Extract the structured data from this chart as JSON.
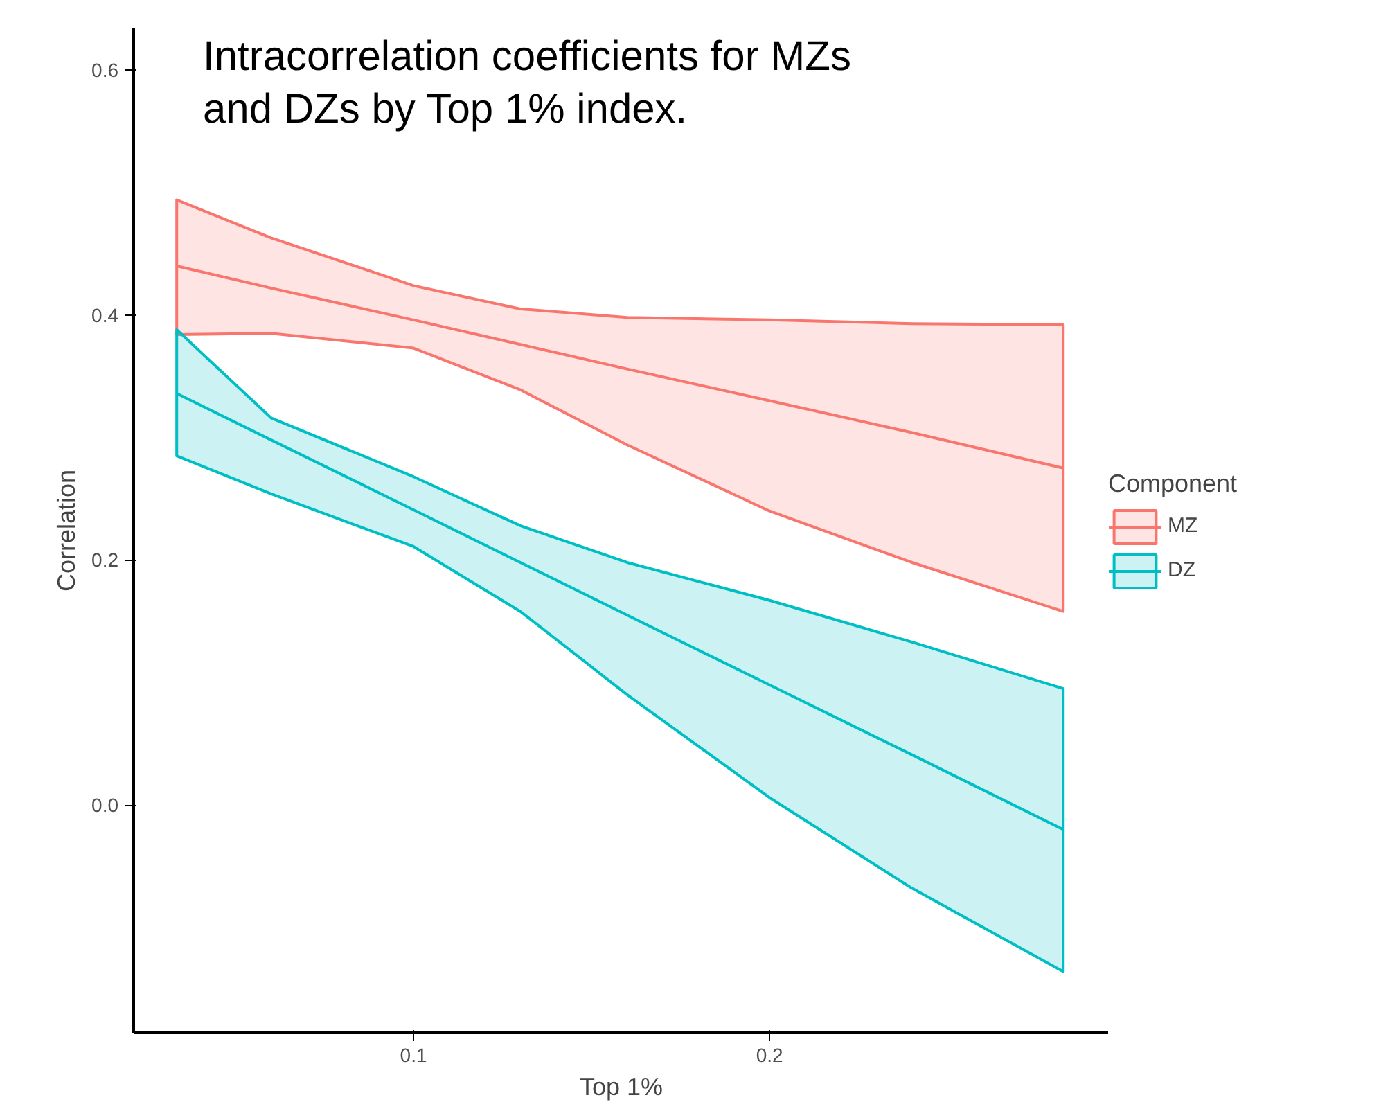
{
  "chart_data": {
    "type": "line",
    "title": "Intracorrelation coefficients for MZs and DZs by Top 1% index.",
    "xlabel": "Top 1%",
    "ylabel": "Correlation",
    "legend_title": "Component",
    "x": [
      0.0335,
      0.06,
      0.1,
      0.13,
      0.16,
      0.2,
      0.24,
      0.2825
    ],
    "series": [
      {
        "name": "MZ",
        "color": "#f8766d",
        "values": [
          0.44,
          0.422,
          0.396,
          0.376,
          0.356,
          0.33,
          0.304,
          0.275
        ],
        "lower": [
          0.384,
          0.385,
          0.373,
          0.339,
          0.294,
          0.24,
          0.198,
          0.158
        ],
        "upper": [
          0.494,
          0.463,
          0.424,
          0.405,
          0.398,
          0.396,
          0.393,
          0.392
        ]
      },
      {
        "name": "DZ",
        "color": "#00bfc4",
        "values": [
          0.336,
          0.298,
          0.241,
          0.198,
          0.155,
          0.098,
          0.041,
          -0.02
        ],
        "lower": [
          0.285,
          0.254,
          0.211,
          0.158,
          0.09,
          0.006,
          -0.068,
          -0.136
        ],
        "upper": [
          0.388,
          0.316,
          0.268,
          0.228,
          0.198,
          0.167,
          0.133,
          0.095
        ]
      }
    ],
    "xlim": [
      0.0214,
      0.2953
    ],
    "ylim": [
      -0.186,
      0.634
    ],
    "xticks": [
      0.1,
      0.2
    ],
    "yticks": [
      {
        "value": 0.0,
        "label": "0.0"
      },
      0.2,
      0.4,
      0.6
    ],
    "grid": false,
    "legend": "right",
    "marker": "none",
    "line_style": "solid"
  }
}
